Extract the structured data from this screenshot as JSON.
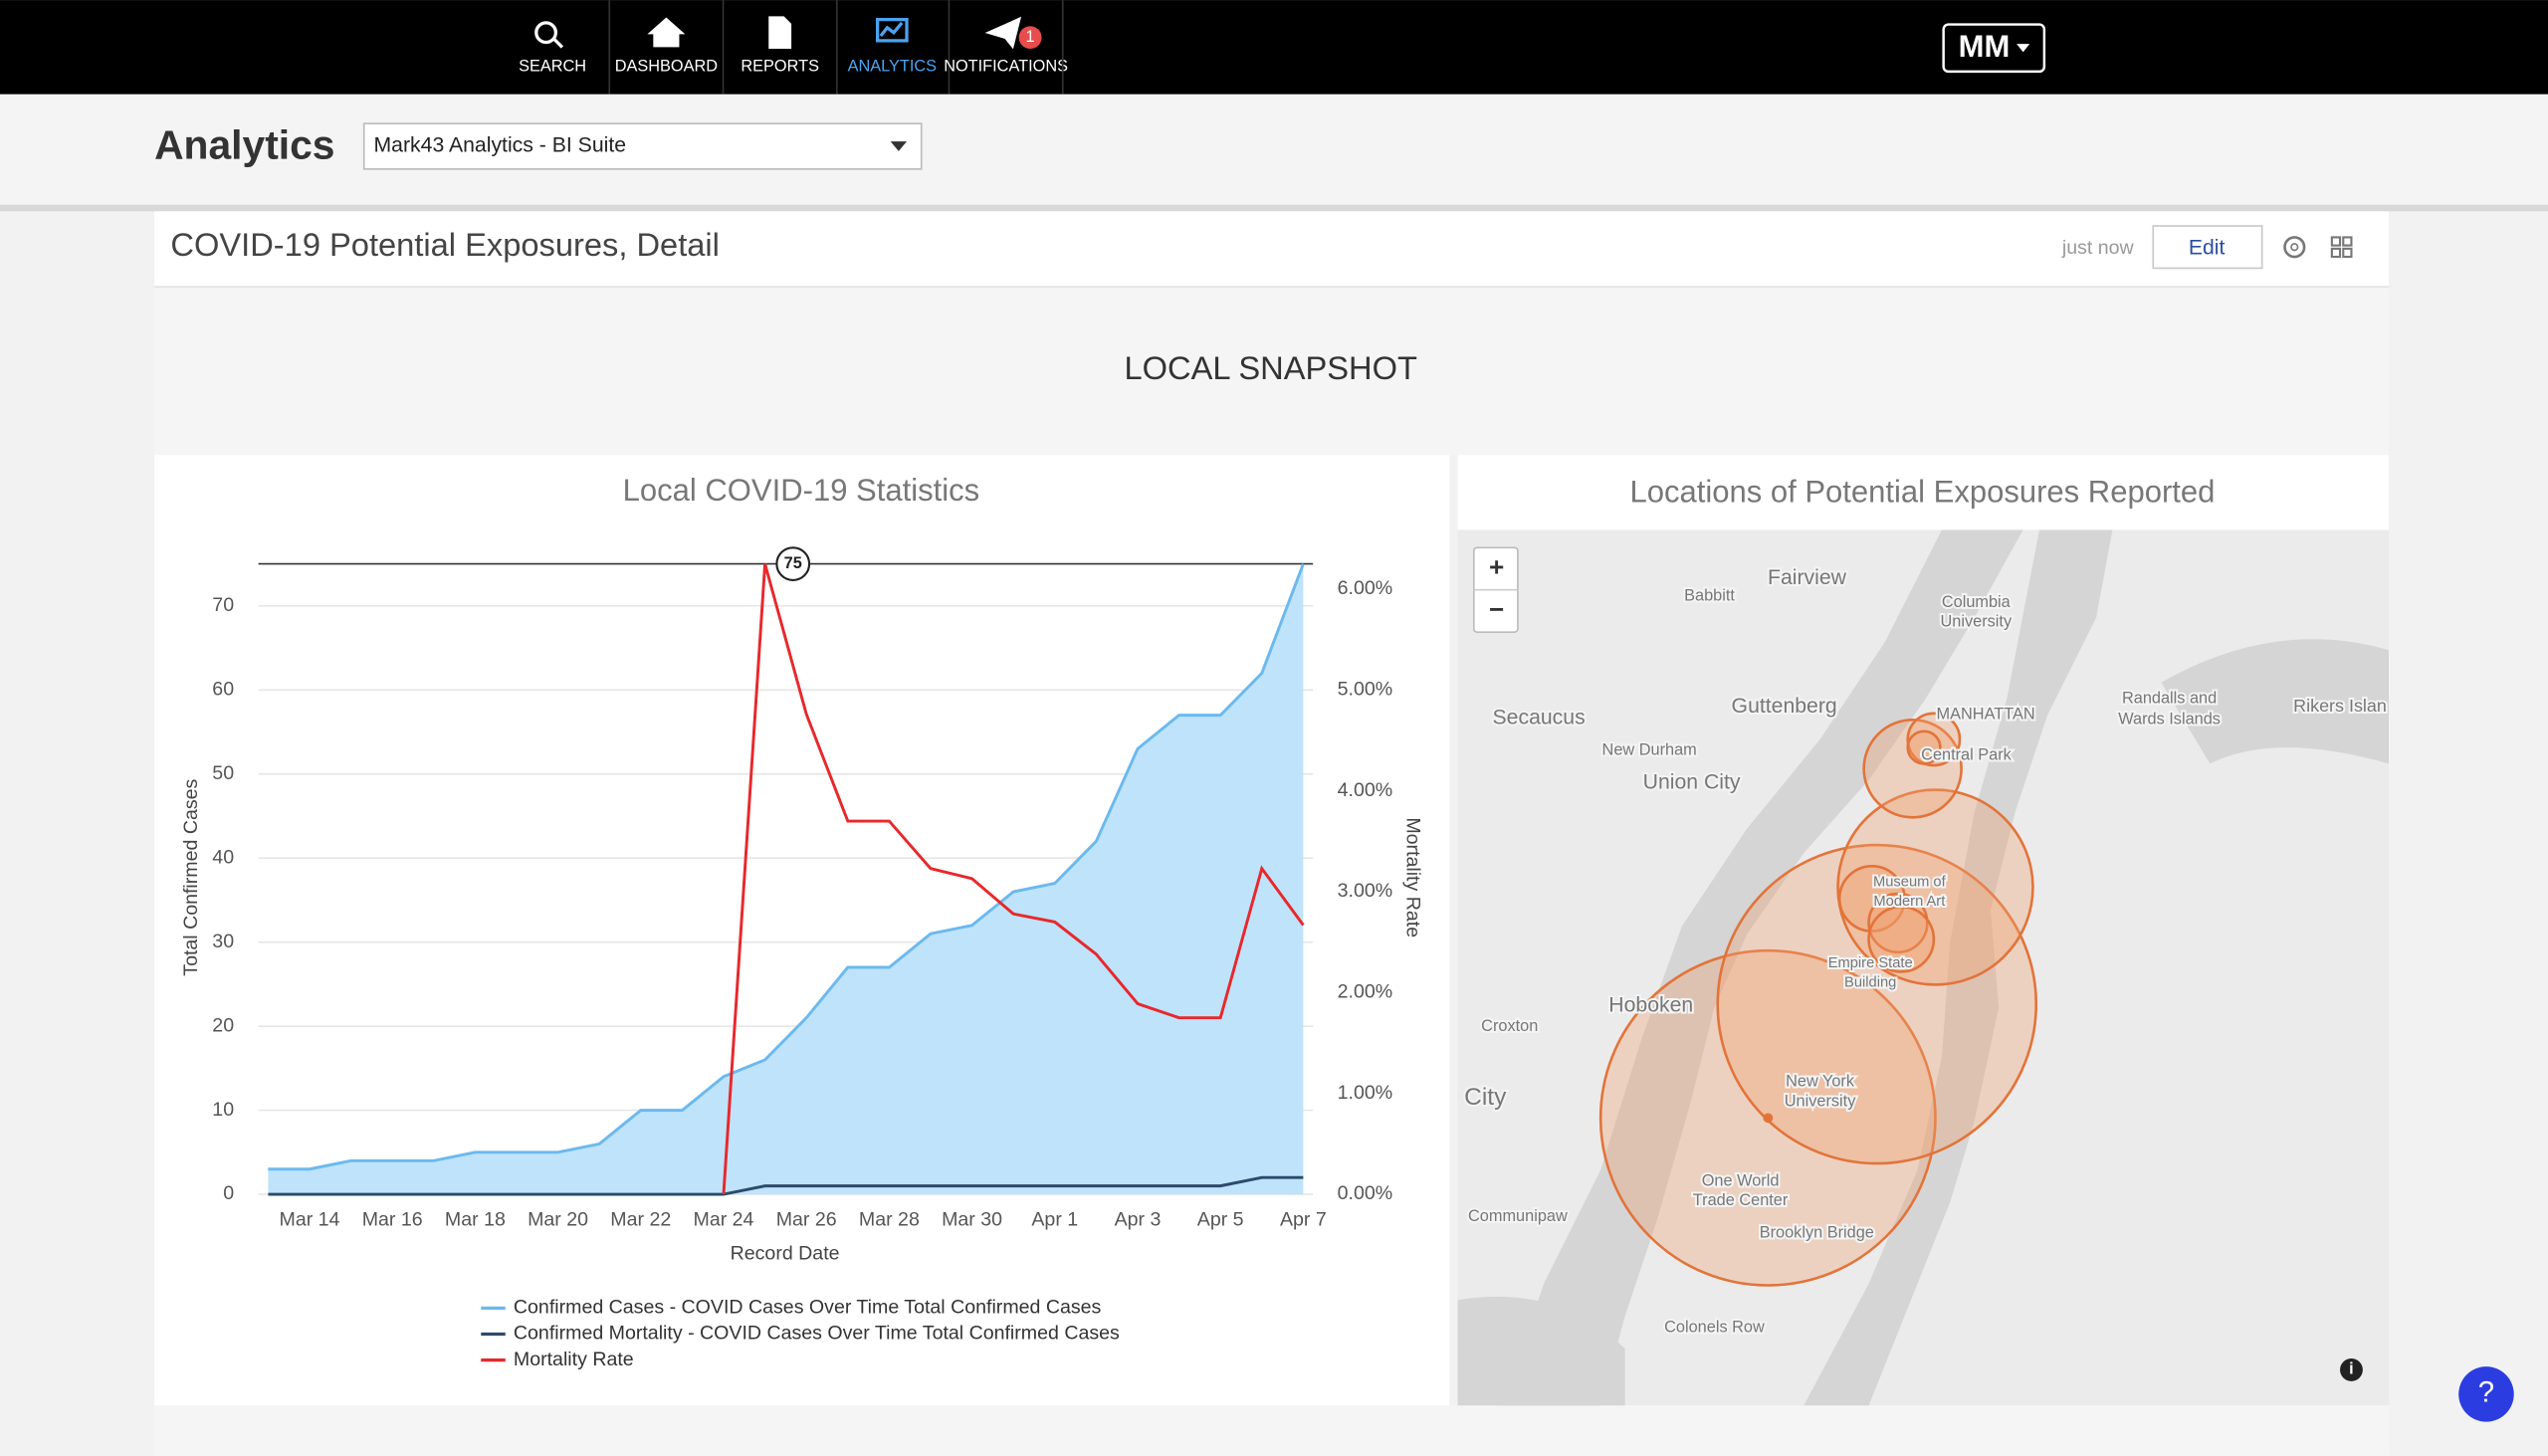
{
  "nav": {
    "items": [
      "SEARCH",
      "DASHBOARD",
      "REPORTS",
      "ANALYTICS",
      "NOTIFICATIONS"
    ],
    "badge": "1",
    "user": "MM"
  },
  "header": {
    "title": "Analytics",
    "select": "Mark43 Analytics - BI Suite"
  },
  "dashboard": {
    "title": "COVID-19 Potential Exposures, Detail",
    "updated": "just now",
    "edit": "Edit",
    "section": "LOCAL SNAPSHOT"
  },
  "chart_data": {
    "type": "line",
    "title": "Local COVID-19 Statistics",
    "x_label": "Record Date",
    "y_label": "Total Confirmed Cases",
    "y2_label": "Mortality Rate",
    "annotation": "75",
    "categories": [
      null,
      "Mar 14",
      null,
      "Mar 16",
      null,
      "Mar 18",
      null,
      "Mar 20",
      null,
      "Mar 22",
      null,
      "Mar 24",
      null,
      "Mar 26",
      null,
      "Mar 28",
      null,
      "Mar 30",
      null,
      "Apr 1",
      null,
      "Apr 3",
      null,
      "Apr 5",
      null,
      "Apr 7"
    ],
    "series": [
      {
        "name": "Confirmed Cases - COVID Cases Over Time Total Confirmed Cases",
        "color": "#6bb9ef",
        "fill": "#bfe3fb",
        "values": [
          3,
          3,
          4,
          4,
          4,
          5,
          5,
          5,
          6,
          10,
          10,
          14,
          16,
          21,
          27,
          27,
          31,
          32,
          36,
          37,
          42,
          53,
          57,
          57,
          62,
          75
        ]
      },
      {
        "name": "Confirmed Mortality - COVID Cases Over Time Total Confirmed Cases",
        "color": "#2d4a6b",
        "values": [
          0,
          0,
          0,
          0,
          0,
          0,
          0,
          0,
          0,
          0,
          0,
          0,
          1,
          1,
          1,
          1,
          1,
          1,
          1,
          1,
          1,
          1,
          1,
          1,
          2,
          2
        ]
      },
      {
        "name": "Mortality Rate",
        "color": "#e8282b",
        "axis": "y2",
        "values": [
          null,
          null,
          null,
          null,
          null,
          null,
          null,
          null,
          null,
          null,
          null,
          0,
          6.25,
          4.76,
          3.7,
          3.7,
          3.23,
          3.13,
          2.78,
          2.7,
          2.38,
          1.89,
          1.75,
          1.75,
          3.23,
          2.67
        ]
      }
    ],
    "ylim": [
      0,
      75
    ],
    "yticks": [
      0,
      10,
      20,
      30,
      40,
      50,
      60,
      70
    ],
    "y2lim": [
      0,
      6.25
    ],
    "y2ticks": [
      {
        "value": 0,
        "label": "0.00%"
      },
      {
        "value": 1,
        "label": "1.00%"
      },
      {
        "value": 2,
        "label": "2.00%"
      },
      {
        "value": 3,
        "label": "3.00%"
      },
      {
        "value": 4,
        "label": "4.00%"
      },
      {
        "value": 5,
        "label": "5.00%"
      },
      {
        "value": 6,
        "label": "6.00%"
      }
    ],
    "grid": true,
    "legend": "bottom"
  },
  "map": {
    "title": "Locations of Potential Exposures Reported",
    "zoom_in": "+",
    "zoom_out": "−",
    "info": "i",
    "labels": [
      "Fairview",
      "Babbitt",
      "Columbia",
      "University",
      "Secaucus",
      "Guttenberg",
      "MANHATTAN",
      "Randalls and",
      "Wards Islands",
      "Rikers Islan",
      "New Durham",
      "Central Park",
      "Union City",
      "Museum of",
      "Modern Art",
      "Empire State",
      "Building",
      "Hoboken",
      "Croxton",
      "City",
      "New York",
      "University",
      "One World",
      "Trade Center",
      "Brooklyn Bridge",
      "Communipaw",
      "Colonels Row"
    ]
  },
  "help": "?"
}
